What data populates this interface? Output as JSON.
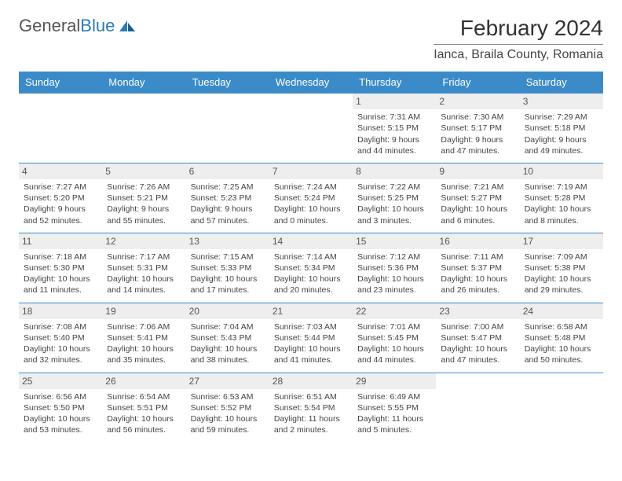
{
  "logo": {
    "word1": "General",
    "word2": "Blue"
  },
  "header": {
    "month_title": "February 2024",
    "location": "Ianca, Braila County, Romania"
  },
  "colors": {
    "header_bg": "#3b8bc9",
    "header_text": "#ffffff",
    "row_border": "#3b8bc9",
    "daynum_bg": "#eeeeee",
    "logo_blue": "#2b7bb9"
  },
  "weekdays": [
    "Sunday",
    "Monday",
    "Tuesday",
    "Wednesday",
    "Thursday",
    "Friday",
    "Saturday"
  ],
  "weeks": [
    [
      {
        "day": "",
        "sunrise": "",
        "sunset": "",
        "daylight_a": "",
        "daylight_b": ""
      },
      {
        "day": "",
        "sunrise": "",
        "sunset": "",
        "daylight_a": "",
        "daylight_b": ""
      },
      {
        "day": "",
        "sunrise": "",
        "sunset": "",
        "daylight_a": "",
        "daylight_b": ""
      },
      {
        "day": "",
        "sunrise": "",
        "sunset": "",
        "daylight_a": "",
        "daylight_b": ""
      },
      {
        "day": "1",
        "sunrise": "Sunrise: 7:31 AM",
        "sunset": "Sunset: 5:15 PM",
        "daylight_a": "Daylight: 9 hours",
        "daylight_b": "and 44 minutes."
      },
      {
        "day": "2",
        "sunrise": "Sunrise: 7:30 AM",
        "sunset": "Sunset: 5:17 PM",
        "daylight_a": "Daylight: 9 hours",
        "daylight_b": "and 47 minutes."
      },
      {
        "day": "3",
        "sunrise": "Sunrise: 7:29 AM",
        "sunset": "Sunset: 5:18 PM",
        "daylight_a": "Daylight: 9 hours",
        "daylight_b": "and 49 minutes."
      }
    ],
    [
      {
        "day": "4",
        "sunrise": "Sunrise: 7:27 AM",
        "sunset": "Sunset: 5:20 PM",
        "daylight_a": "Daylight: 9 hours",
        "daylight_b": "and 52 minutes."
      },
      {
        "day": "5",
        "sunrise": "Sunrise: 7:26 AM",
        "sunset": "Sunset: 5:21 PM",
        "daylight_a": "Daylight: 9 hours",
        "daylight_b": "and 55 minutes."
      },
      {
        "day": "6",
        "sunrise": "Sunrise: 7:25 AM",
        "sunset": "Sunset: 5:23 PM",
        "daylight_a": "Daylight: 9 hours",
        "daylight_b": "and 57 minutes."
      },
      {
        "day": "7",
        "sunrise": "Sunrise: 7:24 AM",
        "sunset": "Sunset: 5:24 PM",
        "daylight_a": "Daylight: 10 hours",
        "daylight_b": "and 0 minutes."
      },
      {
        "day": "8",
        "sunrise": "Sunrise: 7:22 AM",
        "sunset": "Sunset: 5:25 PM",
        "daylight_a": "Daylight: 10 hours",
        "daylight_b": "and 3 minutes."
      },
      {
        "day": "9",
        "sunrise": "Sunrise: 7:21 AM",
        "sunset": "Sunset: 5:27 PM",
        "daylight_a": "Daylight: 10 hours",
        "daylight_b": "and 6 minutes."
      },
      {
        "day": "10",
        "sunrise": "Sunrise: 7:19 AM",
        "sunset": "Sunset: 5:28 PM",
        "daylight_a": "Daylight: 10 hours",
        "daylight_b": "and 8 minutes."
      }
    ],
    [
      {
        "day": "11",
        "sunrise": "Sunrise: 7:18 AM",
        "sunset": "Sunset: 5:30 PM",
        "daylight_a": "Daylight: 10 hours",
        "daylight_b": "and 11 minutes."
      },
      {
        "day": "12",
        "sunrise": "Sunrise: 7:17 AM",
        "sunset": "Sunset: 5:31 PM",
        "daylight_a": "Daylight: 10 hours",
        "daylight_b": "and 14 minutes."
      },
      {
        "day": "13",
        "sunrise": "Sunrise: 7:15 AM",
        "sunset": "Sunset: 5:33 PM",
        "daylight_a": "Daylight: 10 hours",
        "daylight_b": "and 17 minutes."
      },
      {
        "day": "14",
        "sunrise": "Sunrise: 7:14 AM",
        "sunset": "Sunset: 5:34 PM",
        "daylight_a": "Daylight: 10 hours",
        "daylight_b": "and 20 minutes."
      },
      {
        "day": "15",
        "sunrise": "Sunrise: 7:12 AM",
        "sunset": "Sunset: 5:36 PM",
        "daylight_a": "Daylight: 10 hours",
        "daylight_b": "and 23 minutes."
      },
      {
        "day": "16",
        "sunrise": "Sunrise: 7:11 AM",
        "sunset": "Sunset: 5:37 PM",
        "daylight_a": "Daylight: 10 hours",
        "daylight_b": "and 26 minutes."
      },
      {
        "day": "17",
        "sunrise": "Sunrise: 7:09 AM",
        "sunset": "Sunset: 5:38 PM",
        "daylight_a": "Daylight: 10 hours",
        "daylight_b": "and 29 minutes."
      }
    ],
    [
      {
        "day": "18",
        "sunrise": "Sunrise: 7:08 AM",
        "sunset": "Sunset: 5:40 PM",
        "daylight_a": "Daylight: 10 hours",
        "daylight_b": "and 32 minutes."
      },
      {
        "day": "19",
        "sunrise": "Sunrise: 7:06 AM",
        "sunset": "Sunset: 5:41 PM",
        "daylight_a": "Daylight: 10 hours",
        "daylight_b": "and 35 minutes."
      },
      {
        "day": "20",
        "sunrise": "Sunrise: 7:04 AM",
        "sunset": "Sunset: 5:43 PM",
        "daylight_a": "Daylight: 10 hours",
        "daylight_b": "and 38 minutes."
      },
      {
        "day": "21",
        "sunrise": "Sunrise: 7:03 AM",
        "sunset": "Sunset: 5:44 PM",
        "daylight_a": "Daylight: 10 hours",
        "daylight_b": "and 41 minutes."
      },
      {
        "day": "22",
        "sunrise": "Sunrise: 7:01 AM",
        "sunset": "Sunset: 5:45 PM",
        "daylight_a": "Daylight: 10 hours",
        "daylight_b": "and 44 minutes."
      },
      {
        "day": "23",
        "sunrise": "Sunrise: 7:00 AM",
        "sunset": "Sunset: 5:47 PM",
        "daylight_a": "Daylight: 10 hours",
        "daylight_b": "and 47 minutes."
      },
      {
        "day": "24",
        "sunrise": "Sunrise: 6:58 AM",
        "sunset": "Sunset: 5:48 PM",
        "daylight_a": "Daylight: 10 hours",
        "daylight_b": "and 50 minutes."
      }
    ],
    [
      {
        "day": "25",
        "sunrise": "Sunrise: 6:56 AM",
        "sunset": "Sunset: 5:50 PM",
        "daylight_a": "Daylight: 10 hours",
        "daylight_b": "and 53 minutes."
      },
      {
        "day": "26",
        "sunrise": "Sunrise: 6:54 AM",
        "sunset": "Sunset: 5:51 PM",
        "daylight_a": "Daylight: 10 hours",
        "daylight_b": "and 56 minutes."
      },
      {
        "day": "27",
        "sunrise": "Sunrise: 6:53 AM",
        "sunset": "Sunset: 5:52 PM",
        "daylight_a": "Daylight: 10 hours",
        "daylight_b": "and 59 minutes."
      },
      {
        "day": "28",
        "sunrise": "Sunrise: 6:51 AM",
        "sunset": "Sunset: 5:54 PM",
        "daylight_a": "Daylight: 11 hours",
        "daylight_b": "and 2 minutes."
      },
      {
        "day": "29",
        "sunrise": "Sunrise: 6:49 AM",
        "sunset": "Sunset: 5:55 PM",
        "daylight_a": "Daylight: 11 hours",
        "daylight_b": "and 5 minutes."
      },
      {
        "day": "",
        "sunrise": "",
        "sunset": "",
        "daylight_a": "",
        "daylight_b": ""
      },
      {
        "day": "",
        "sunrise": "",
        "sunset": "",
        "daylight_a": "",
        "daylight_b": ""
      }
    ]
  ]
}
